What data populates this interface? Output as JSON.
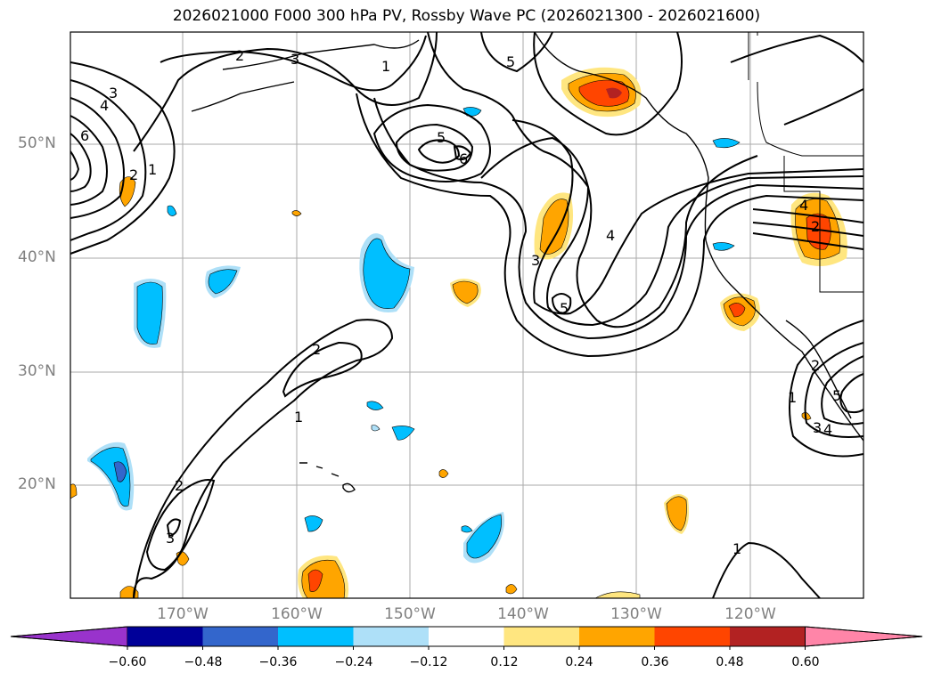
{
  "title": "2026021000 F000 300 hPa PV, Rossby Wave PC (2026021300 - 2026021600)",
  "latitude_labels": [
    "50°N",
    "40°N",
    "30°N",
    "20°N"
  ],
  "longitude_labels": [
    "170°W",
    "160°W",
    "150°W",
    "140°W",
    "130°W",
    "120°W"
  ],
  "colorbar": {
    "tick_labels": [
      "−0.60",
      "−0.48",
      "−0.36",
      "−0.24",
      "−0.12",
      "0.12",
      "0.24",
      "0.36",
      "0.48",
      "0.60"
    ],
    "colors": [
      "#9933cc",
      "#000099",
      "#3366cc",
      "#00bfff",
      "#aee0f8",
      "#ffffff",
      "#ffe680",
      "#ffa500",
      "#ff4500",
      "#b22222",
      "#ff85a8"
    ]
  },
  "contour_labels": [
    "2",
    "3",
    "1",
    "5",
    "3",
    "4",
    "6",
    "5",
    "6",
    "2",
    "1",
    "3",
    "4",
    "5",
    "4",
    "2",
    "2",
    "1",
    "2",
    "3",
    "1",
    "2",
    "3",
    "4",
    "5",
    "1"
  ]
}
